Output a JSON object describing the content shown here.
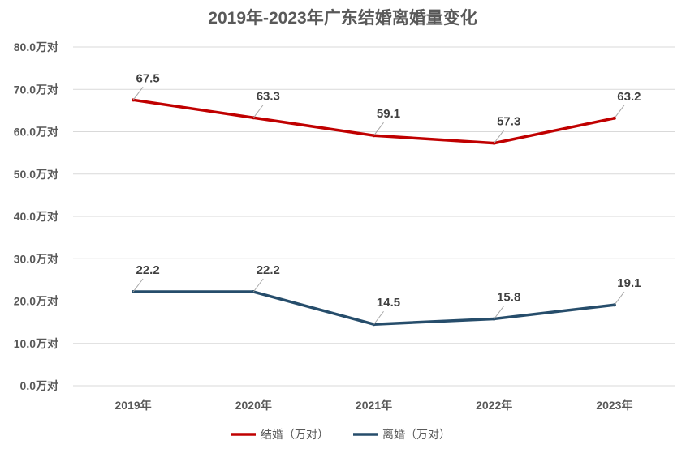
{
  "chart_data": {
    "type": "line",
    "title": "2019年-2023年广东结婚离婚量变化",
    "categories": [
      "2019年",
      "2020年",
      "2021年",
      "2022年",
      "2023年"
    ],
    "y_tick_labels": [
      "0.0万对",
      "10.0万对",
      "20.0万对",
      "30.0万对",
      "40.0万对",
      "50.0万对",
      "60.0万对",
      "70.0万对",
      "80.0万对"
    ],
    "ylim": [
      0,
      80
    ],
    "grid": true,
    "legend_position": "bottom",
    "series": [
      {
        "name": "结婚（万对）",
        "color": "#C00000",
        "values": [
          67.5,
          63.3,
          59.1,
          57.3,
          63.2
        ],
        "labels": [
          "67.5",
          "63.3",
          "59.1",
          "57.3",
          "63.2"
        ]
      },
      {
        "name": "离婚（万对）",
        "color": "#264D6B",
        "values": [
          22.2,
          22.2,
          14.5,
          15.8,
          19.1
        ],
        "labels": [
          "22.2",
          "22.2",
          "14.5",
          "15.8",
          "19.1"
        ]
      }
    ],
    "colors": {
      "title": "#595959",
      "axis_text": "#595959",
      "data_label": "#404040",
      "grid": "#D9D9D9",
      "leader": "#A6A6A6"
    }
  }
}
